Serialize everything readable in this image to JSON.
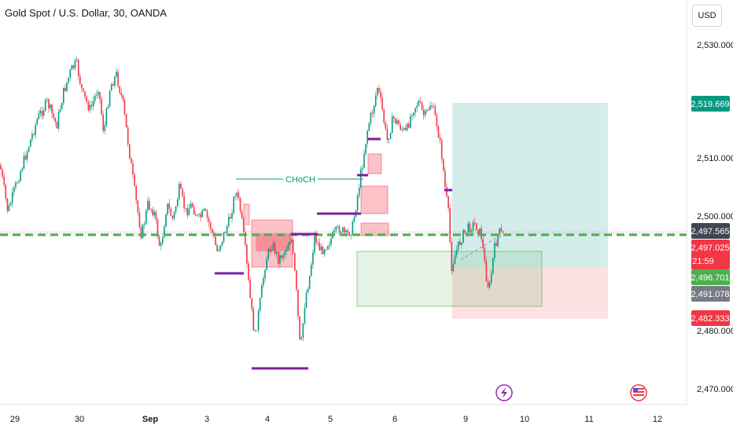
{
  "header": {
    "title": "Gold Spot / U.S. Dollar, 30, OANDA",
    "currency": "USD"
  },
  "chart_data": {
    "type": "candlestick",
    "price_ticks": [
      "2,530.000",
      "2,510.000",
      "2,500.000",
      "2,480.000",
      "2,470.000"
    ],
    "date_ticks": [
      "29",
      "30",
      "Sep",
      "3",
      "4",
      "5",
      "6",
      "9",
      "10",
      "11",
      "12"
    ],
    "price_tags": [
      {
        "label": "2,519.669",
        "value": 2519.669,
        "color": "#089981"
      },
      {
        "label": "2,497.565",
        "value": 2497.565,
        "color": "#434651"
      },
      {
        "label": "2,497.025",
        "value": 2497.025,
        "color": "#f23645"
      },
      {
        "label": "21:59",
        "value": null,
        "color": "#f23645"
      },
      {
        "label": "2,496.701",
        "value": 2496.701,
        "color": "#4caf50"
      },
      {
        "label": "2,491.078",
        "value": 2491.078,
        "color": "#787b86"
      },
      {
        "label": "2,482.333",
        "value": 2482.333,
        "color": "#f23645"
      }
    ],
    "annotation": "CHoCH",
    "last_price": 2497.025,
    "long_position": {
      "entry": 2491.078,
      "target": 2519.669,
      "stop": 2482.333
    },
    "colors": {
      "up": "#089981",
      "down": "#f23645",
      "level": "#4caf50",
      "structure": "#7b1fa2"
    },
    "grid": false
  }
}
